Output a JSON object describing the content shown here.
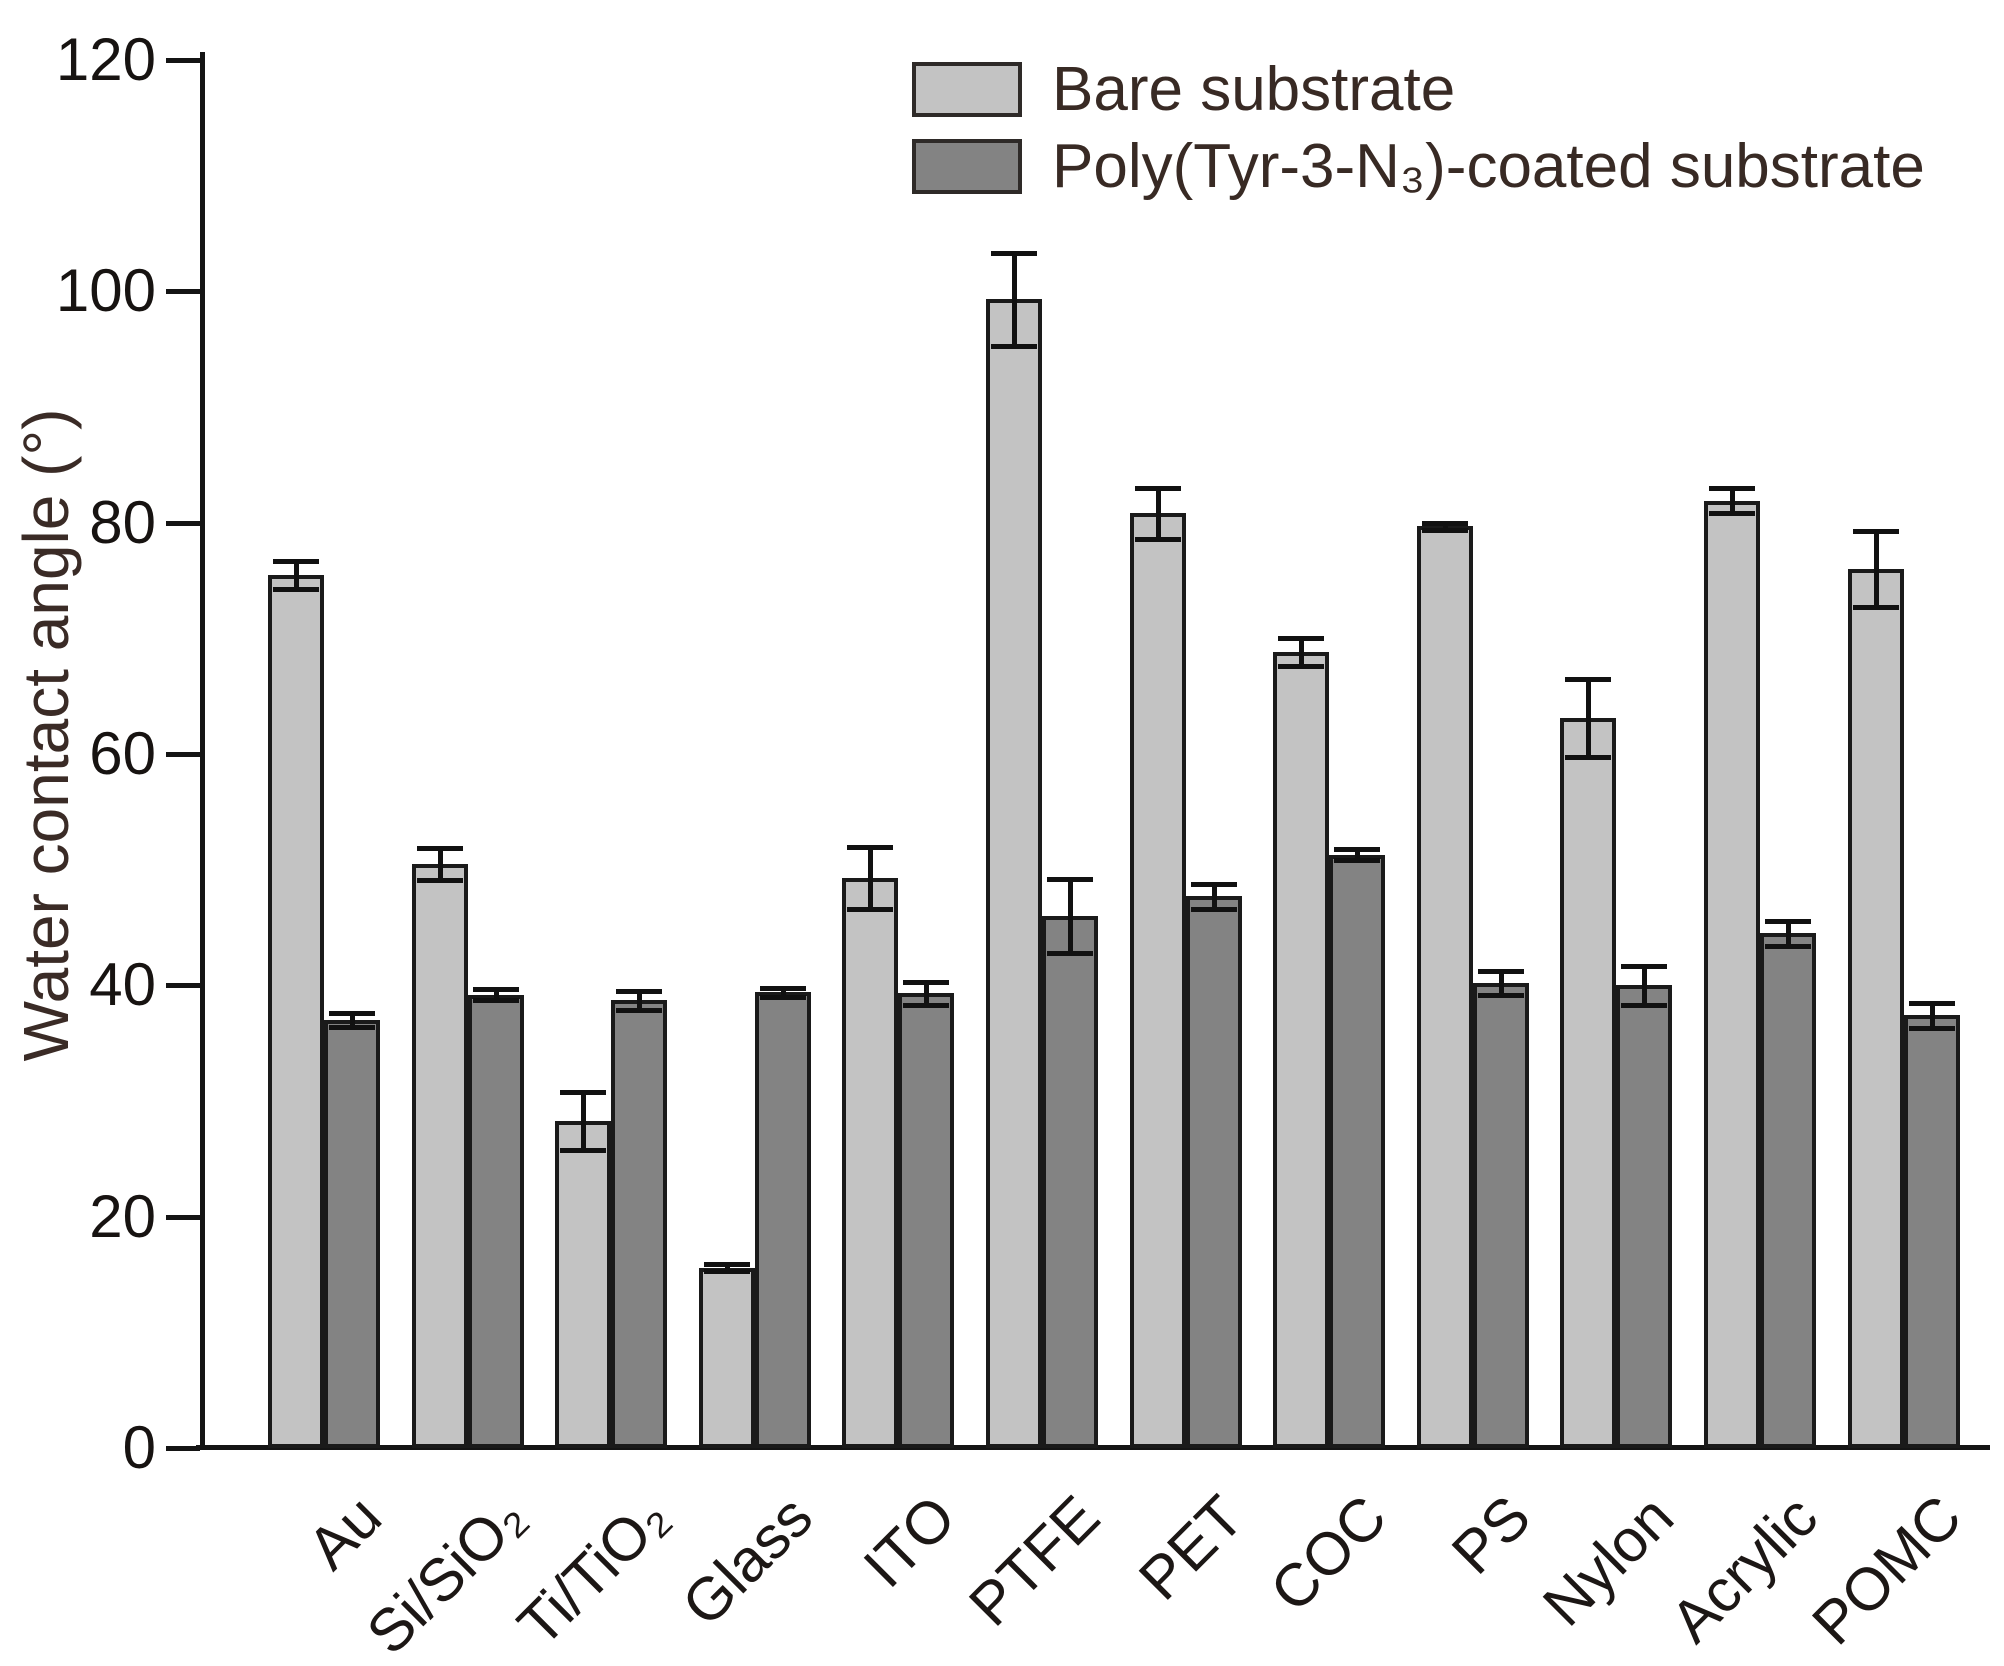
{
  "figure": {
    "background": "#ffffff",
    "text_color": "#382a24",
    "axis_color": "#141414"
  },
  "chart_data": {
    "type": "bar",
    "title": "",
    "xlabel": "",
    "ylabel": "Water contact angle (°)",
    "ylim": [
      0,
      120
    ],
    "y_ticks": [
      "0",
      "20",
      "40",
      "60",
      "80",
      "100",
      "120"
    ],
    "grid": false,
    "legend_position": "inside-top-center",
    "error_bars": true,
    "categories": [
      "Au",
      "Si/SiO₂",
      "Ti/TiO₂",
      "Glass",
      "ITO",
      "PTFE",
      "PET",
      "COC",
      "PS",
      "Nylon",
      "Acrylic",
      "POMC"
    ],
    "series": [
      {
        "name": "Bare substrate",
        "color": "#c3c3c3",
        "values": [
          75.5,
          50.5,
          28.3,
          15.6,
          49.3,
          99.3,
          80.8,
          68.8,
          79.7,
          63.1,
          81.9,
          76.0
        ],
        "errors": [
          1.2,
          1.4,
          2.5,
          0.3,
          2.7,
          4.0,
          2.2,
          1.2,
          0.3,
          3.4,
          1.1,
          3.3
        ]
      },
      {
        "name": "Poly(Tyr-3-N₃)-coated substrate",
        "color": "#838383",
        "values": [
          37.0,
          39.2,
          38.7,
          39.4,
          39.3,
          46.0,
          47.7,
          51.3,
          40.2,
          40.0,
          44.5,
          37.4
        ],
        "errors": [
          0.6,
          0.5,
          0.8,
          0.4,
          1.0,
          3.2,
          1.1,
          0.5,
          1.0,
          1.7,
          1.1,
          1.1
        ]
      }
    ]
  }
}
